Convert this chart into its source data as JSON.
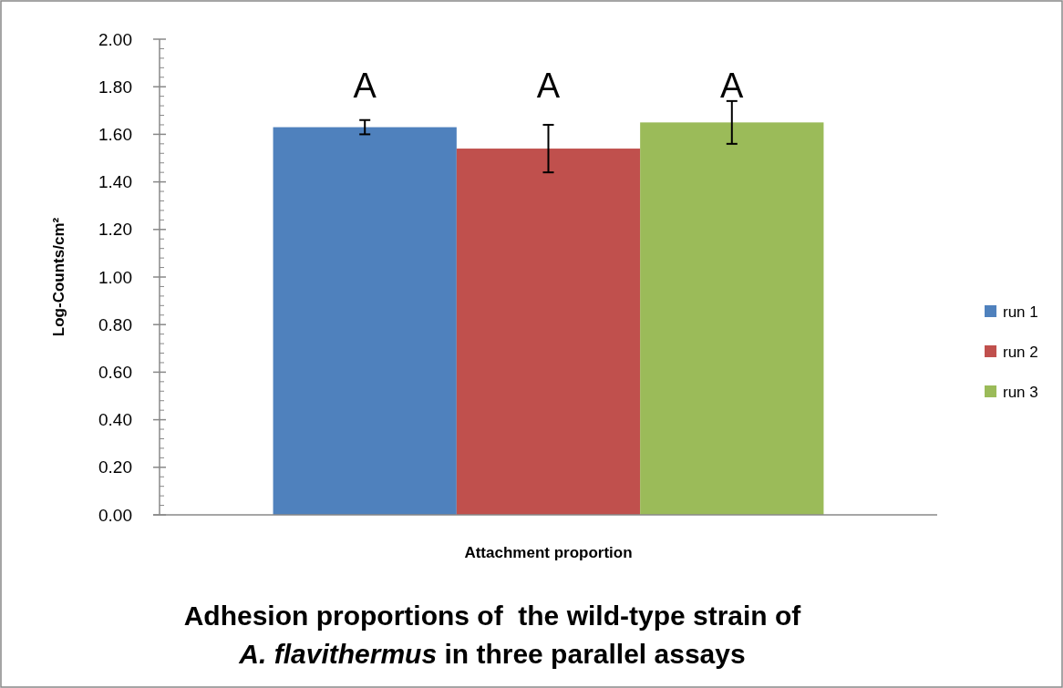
{
  "chart_data": {
    "type": "bar",
    "title": "Adhesion proportions of  the wild-type strain of\nA. flavithermus in three parallel assays",
    "xlabel": "Attachment proportion",
    "ylabel": "Log-Counts/cm²",
    "categories": [
      null
    ],
    "series": [
      {
        "name": "run 1",
        "color": "#4f81bd",
        "values": [
          1.63
        ],
        "errors": [
          0.03
        ]
      },
      {
        "name": "run 2",
        "color": "#c0504d",
        "values": [
          1.54
        ],
        "errors": [
          0.1
        ]
      },
      {
        "name": "run 3",
        "color": "#9bbb59",
        "values": [
          1.65
        ],
        "errors": [
          0.09
        ]
      }
    ],
    "annotations": [
      "A",
      "A",
      "A"
    ],
    "ylim": [
      0,
      2
    ],
    "yticks": [
      {
        "value": 0,
        "label": "0.00"
      },
      {
        "value": 0.2,
        "label": "0.20"
      },
      {
        "value": 0.4,
        "label": "0.40"
      },
      {
        "value": 0.6,
        "label": "0.60"
      },
      {
        "value": 0.8,
        "label": "0.80"
      },
      {
        "value": 1,
        "label": "1.00"
      },
      {
        "value": 1.2,
        "label": "1.20"
      },
      {
        "value": 1.4,
        "label": "1.40"
      },
      {
        "value": 1.6,
        "label": "1.60"
      },
      {
        "value": 1.8,
        "label": "1.80"
      },
      {
        "value": 2,
        "label": "2.00"
      }
    ],
    "legend": "right",
    "grid": false
  }
}
